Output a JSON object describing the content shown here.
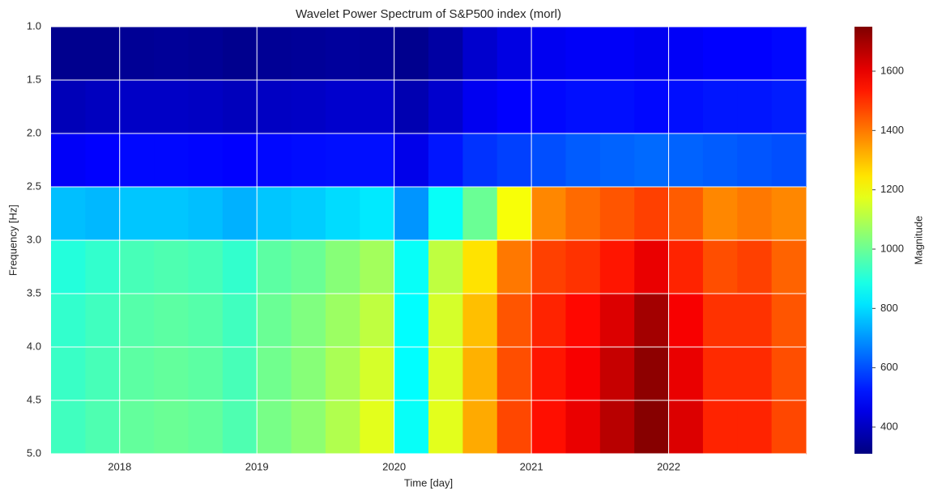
{
  "chart_data": {
    "type": "heatmap",
    "title": "Wavelet Power Spectrum of S&P500 index (morl)",
    "xlabel": "Time [day]",
    "ylabel": "Frequency [Hz]",
    "colorbar_label": "Magnitude",
    "colormap": "jet",
    "grid": true,
    "y_inverted": true,
    "xlim": [
      2017.5,
      2023.0
    ],
    "xticks": [
      2018,
      2019,
      2020,
      2021,
      2022
    ],
    "ylim": [
      1.0,
      5.0
    ],
    "yticks": [
      {
        "value": 1.0,
        "label": "1.0"
      },
      {
        "value": 1.5,
        "label": "1.5"
      },
      {
        "value": 2.0,
        "label": "2.0"
      },
      {
        "value": 2.5,
        "label": "2.5"
      },
      {
        "value": 3.0,
        "label": "3.0"
      },
      {
        "value": 3.5,
        "label": "3.5"
      },
      {
        "value": 4.0,
        "label": "4.0"
      },
      {
        "value": 4.5,
        "label": "4.5"
      },
      {
        "value": 5.0,
        "label": "5.0"
      }
    ],
    "clim": [
      310,
      1750
    ],
    "cticks": [
      400,
      600,
      800,
      1000,
      1200,
      1400,
      1600
    ],
    "x": [
      2017.625,
      2017.875,
      2018.125,
      2018.375,
      2018.625,
      2018.875,
      2019.125,
      2019.375,
      2019.625,
      2019.875,
      2020.125,
      2020.375,
      2020.625,
      2020.875,
      2021.125,
      2021.375,
      2021.625,
      2021.875,
      2022.125,
      2022.375,
      2022.625,
      2022.875
    ],
    "y": [
      1.25,
      1.75,
      2.25,
      2.75,
      3.25,
      3.75,
      4.25,
      4.75
    ],
    "values": [
      [
        330,
        330,
        340,
        345,
        340,
        330,
        340,
        345,
        350,
        345,
        330,
        360,
        420,
        450,
        470,
        480,
        480,
        470,
        480,
        490,
        490,
        500
      ],
      [
        390,
        400,
        410,
        410,
        405,
        395,
        405,
        410,
        420,
        420,
        380,
        420,
        470,
        490,
        500,
        510,
        510,
        500,
        510,
        520,
        520,
        530
      ],
      [
        480,
        490,
        500,
        500,
        495,
        490,
        500,
        505,
        510,
        510,
        460,
        520,
        560,
        580,
        600,
        620,
        630,
        640,
        630,
        620,
        610,
        600
      ],
      [
        760,
        750,
        770,
        770,
        760,
        740,
        770,
        780,
        800,
        820,
        700,
        860,
        1000,
        1200,
        1380,
        1420,
        1450,
        1480,
        1440,
        1380,
        1400,
        1380
      ],
      [
        900,
        920,
        950,
        960,
        950,
        920,
        980,
        1000,
        1040,
        1080,
        860,
        1120,
        1250,
        1400,
        1480,
        1500,
        1540,
        1600,
        1520,
        1460,
        1480,
        1430
      ],
      [
        920,
        940,
        970,
        980,
        970,
        940,
        1000,
        1030,
        1070,
        1120,
        850,
        1150,
        1300,
        1450,
        1520,
        1560,
        1620,
        1700,
        1580,
        1500,
        1500,
        1450
      ],
      [
        930,
        950,
        980,
        990,
        980,
        950,
        1010,
        1040,
        1090,
        1150,
        850,
        1160,
        1320,
        1460,
        1540,
        1580,
        1650,
        1730,
        1600,
        1510,
        1510,
        1460
      ],
      [
        940,
        960,
        990,
        1000,
        990,
        960,
        1020,
        1050,
        1100,
        1170,
        860,
        1170,
        1330,
        1470,
        1550,
        1600,
        1670,
        1740,
        1620,
        1520,
        1520,
        1470
      ]
    ]
  }
}
